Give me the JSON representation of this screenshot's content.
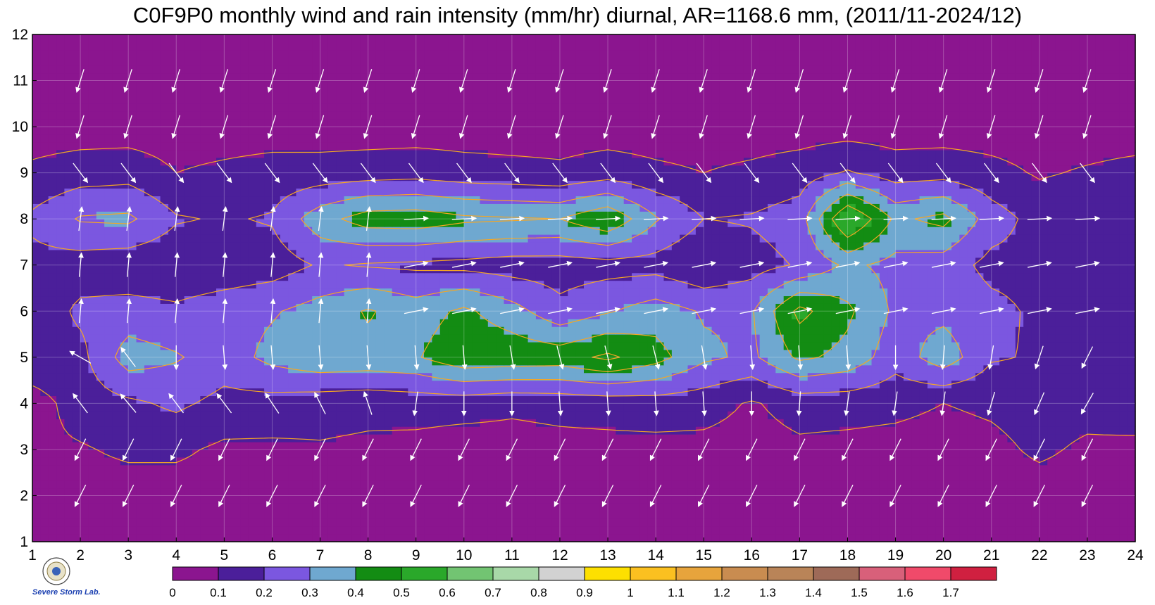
{
  "chart_data": {
    "type": "heatmap",
    "title": "C0F9P0 monthly wind and rain intensity (mm/hr) diurnal, AR=1168.6 mm, (2011/11-2024/12)",
    "xlabel": "",
    "ylabel": "",
    "x": [
      1,
      2,
      3,
      4,
      5,
      6,
      7,
      8,
      9,
      10,
      11,
      12,
      13,
      14,
      15,
      16,
      17,
      18,
      19,
      20,
      21,
      22,
      23,
      24
    ],
    "y": [
      1,
      2,
      3,
      4,
      5,
      6,
      7,
      8,
      9,
      10,
      11,
      12
    ],
    "xlim": [
      1,
      24
    ],
    "ylim": [
      1,
      12
    ],
    "x_tick_labels": [
      "1",
      "2",
      "3",
      "4",
      "5",
      "6",
      "7",
      "8",
      "9",
      "10",
      "11",
      "12",
      "13",
      "14",
      "15",
      "16",
      "17",
      "18",
      "19",
      "20",
      "21",
      "22",
      "23",
      "24"
    ],
    "y_tick_labels": [
      "1",
      "2",
      "3",
      "4",
      "5",
      "6",
      "7",
      "8",
      "9",
      "10",
      "11",
      "12"
    ],
    "grid": true,
    "z": [
      [
        0.05,
        0.05,
        0.05,
        0.05,
        0.05,
        0.05,
        0.05,
        0.05,
        0.05,
        0.05,
        0.05,
        0.05,
        0.05,
        0.05,
        0.05,
        0.05,
        0.05,
        0.05,
        0.05,
        0.05,
        0.05,
        0.05,
        0.05,
        0.05
      ],
      [
        0.05,
        0.05,
        0.05,
        0.05,
        0.05,
        0.05,
        0.05,
        0.05,
        0.05,
        0.05,
        0.05,
        0.05,
        0.05,
        0.05,
        0.05,
        0.05,
        0.05,
        0.05,
        0.05,
        0.05,
        0.05,
        0.05,
        0.05,
        0.05
      ],
      [
        0.08,
        0.09,
        0.12,
        0.12,
        0.08,
        0.08,
        0.09,
        0.08,
        0.07,
        0.05,
        0.06,
        0.07,
        0.07,
        0.07,
        0.07,
        0.06,
        0.08,
        0.07,
        0.06,
        0.05,
        0.07,
        0.12,
        0.08,
        0.07
      ],
      [
        0.05,
        0.15,
        0.18,
        0.22,
        0.17,
        0.16,
        0.14,
        0.13,
        0.14,
        0.14,
        0.12,
        0.13,
        0.14,
        0.15,
        0.14,
        0.09,
        0.14,
        0.14,
        0.13,
        0.1,
        0.12,
        0.15,
        0.14,
        0.17
      ],
      [
        0.18,
        0.17,
        0.35,
        0.31,
        0.25,
        0.33,
        0.38,
        0.37,
        0.39,
        0.48,
        0.47,
        0.46,
        0.52,
        0.44,
        0.32,
        0.28,
        0.42,
        0.37,
        0.24,
        0.36,
        0.21,
        0.19,
        0.18,
        0.19
      ],
      [
        0.13,
        0.22,
        0.24,
        0.22,
        0.26,
        0.29,
        0.34,
        0.41,
        0.35,
        0.42,
        0.34,
        0.23,
        0.29,
        0.35,
        0.29,
        0.29,
        0.53,
        0.42,
        0.28,
        0.27,
        0.23,
        0.18,
        0.17,
        0.18
      ],
      [
        0.17,
        0.15,
        0.13,
        0.12,
        0.13,
        0.15,
        0.21,
        0.19,
        0.18,
        0.17,
        0.15,
        0.15,
        0.16,
        0.16,
        0.11,
        0.16,
        0.21,
        0.32,
        0.27,
        0.25,
        0.17,
        0.17,
        0.15,
        0.18
      ],
      [
        0.22,
        0.31,
        0.32,
        0.21,
        0.19,
        0.21,
        0.36,
        0.45,
        0.46,
        0.42,
        0.41,
        0.4,
        0.49,
        0.31,
        0.2,
        0.21,
        0.25,
        0.62,
        0.38,
        0.43,
        0.25,
        0.16,
        0.17,
        0.14
      ],
      [
        0.12,
        0.15,
        0.16,
        0.1,
        0.12,
        0.14,
        0.14,
        0.15,
        0.16,
        0.14,
        0.13,
        0.12,
        0.15,
        0.12,
        0.1,
        0.12,
        0.15,
        0.21,
        0.15,
        0.16,
        0.13,
        0.09,
        0.11,
        0.13
      ],
      [
        0.05,
        0.05,
        0.05,
        0.05,
        0.05,
        0.05,
        0.05,
        0.05,
        0.05,
        0.05,
        0.05,
        0.05,
        0.05,
        0.05,
        0.05,
        0.05,
        0.05,
        0.05,
        0.05,
        0.05,
        0.05,
        0.05,
        0.05,
        0.05
      ],
      [
        0.05,
        0.05,
        0.05,
        0.05,
        0.05,
        0.05,
        0.05,
        0.05,
        0.05,
        0.05,
        0.05,
        0.05,
        0.05,
        0.05,
        0.05,
        0.05,
        0.05,
        0.05,
        0.05,
        0.05,
        0.05,
        0.05,
        0.05,
        0.05
      ],
      [
        0.05,
        0.05,
        0.05,
        0.05,
        0.05,
        0.05,
        0.05,
        0.05,
        0.05,
        0.05,
        0.05,
        0.05,
        0.05,
        0.05,
        0.05,
        0.05,
        0.05,
        0.05,
        0.05,
        0.05,
        0.05,
        0.05,
        0.05,
        0.05
      ]
    ],
    "wind_direction_deg": [
      35,
      35,
      35,
      35,
      35,
      35,
      35,
      35,
      35,
      35,
      35,
      35,
      0,
      0,
      0,
      0,
      0,
      0,
      0,
      0,
      0,
      0,
      0,
      0,
      0,
      0,
      0,
      0,
      0,
      0,
      0,
      0,
      0,
      0,
      0,
      0,
      0,
      0,
      0,
      0,
      0,
      0,
      0,
      0,
      0,
      0,
      0,
      0,
      0,
      0,
      0,
      0,
      0,
      0,
      0,
      0,
      0,
      0,
      0,
      0,
      0,
      0,
      0,
      0,
      0,
      0,
      0,
      0,
      0,
      0,
      0,
      0,
      0,
      0,
      0,
      0,
      0,
      0,
      0,
      0,
      0,
      0,
      0,
      0,
      0,
      0,
      0,
      0,
      0,
      0,
      0,
      0,
      0,
      0,
      0,
      0,
      0,
      0,
      0,
      0,
      0,
      0,
      0,
      0,
      0,
      0,
      0,
      0,
      0,
      0,
      0,
      0,
      0,
      0,
      0,
      0,
      0,
      0,
      0,
      0,
      0,
      0,
      0,
      0,
      0,
      0,
      0,
      0,
      0,
      0,
      0,
      0,
      0,
      0,
      0,
      0,
      0,
      0,
      0,
      0,
      0,
      0,
      0,
      0,
      0,
      0,
      0,
      0,
      0,
      0,
      0,
      0,
      0,
      0,
      0,
      0,
      0,
      0,
      0,
      0,
      0,
      0,
      0,
      0,
      0,
      0,
      0,
      0,
      0,
      0,
      0,
      0,
      0,
      0,
      0,
      0,
      0,
      0,
      0,
      0,
      0,
      0,
      0,
      0,
      0,
      0,
      0,
      0,
      0,
      0,
      0,
      0,
      0,
      0,
      0,
      0,
      0,
      0,
      0,
      0,
      0,
      0,
      0,
      0,
      0,
      0,
      0,
      0,
      0,
      0,
      0,
      0,
      0,
      0,
      0,
      0,
      0,
      0,
      0,
      0,
      0,
      0,
      0,
      0,
      0,
      0,
      0,
      0,
      0,
      0,
      0,
      0,
      0,
      0,
      0,
      0,
      0,
      0,
      0,
      0,
      0,
      0,
      0,
      0,
      0,
      0,
      0,
      0,
      0,
      0,
      0,
      0,
      0,
      0,
      0,
      0,
      0,
      0,
      0,
      0,
      0,
      0,
      0,
      0,
      0,
      0,
      0,
      0,
      0,
      0,
      0,
      0,
      0,
      0,
      0,
      0,
      0,
      0,
      0,
      0,
      0,
      0,
      0,
      0,
      0,
      0,
      0,
      0,
      0,
      0,
      0,
      0
    ],
    "wind_u": [
      [
        -1,
        -1,
        -1,
        -1,
        -1,
        -1,
        -1,
        -1,
        -1,
        -1,
        -1,
        -1,
        -1,
        -1,
        -1,
        -1,
        -1,
        -1,
        -1,
        -1,
        -1,
        -1,
        -1,
        -1
      ],
      [
        -0.7,
        -0.6,
        -0.6,
        -0.6,
        -0.55,
        -0.5,
        -0.45,
        -0.4,
        -0.35,
        -0.3,
        -0.3,
        -0.3,
        -0.3,
        -0.3,
        -0.3,
        -0.3,
        -0.35,
        -0.35,
        -0.4,
        -0.45,
        -0.5,
        -0.5,
        -0.6,
        -0.7
      ],
      [
        -0.5,
        -0.4,
        -0.35,
        -0.3,
        -0.25,
        -0.2,
        -0.2,
        -0.2,
        -0.15,
        -0.1,
        -0.15,
        -0.15,
        -0.15,
        -0.15,
        -0.15,
        -0.1,
        -0.15,
        -0.15,
        -0.2,
        -0.25,
        -0.3,
        -0.3,
        -0.35,
        -0.4
      ],
      [
        -0.35,
        -0.45,
        -0.5,
        -0.45,
        -0.45,
        -0.4,
        -0.3,
        -0.2,
        -0.1,
        0.0,
        0.0,
        0.05,
        0.05,
        0.05,
        0.05,
        0.0,
        -0.05,
        -0.1,
        -0.1,
        -0.1,
        -0.2,
        -0.3,
        -0.4,
        -0.45
      ],
      [
        -0.6,
        -0.35,
        -0.15,
        0.0,
        0.05,
        0.05,
        0.05,
        0.05,
        0.05,
        0.05,
        0.1,
        0.15,
        0.15,
        0.15,
        0.1,
        0.05,
        0.05,
        0.05,
        0.0,
        -0.05,
        -0.1,
        -0.2,
        -0.3,
        -0.4
      ],
      [
        0.0,
        0.0,
        0.0,
        0.0,
        0.0,
        0.0,
        0.1,
        0.25,
        0.35,
        0.45,
        0.5,
        0.55,
        0.55,
        0.5,
        0.45,
        0.4,
        0.35,
        0.1,
        0.05,
        0.0,
        0.0,
        0.0,
        0.0,
        0.0
      ],
      [
        0.0,
        0.0,
        0.0,
        0.0,
        0.0,
        0.0,
        0.05,
        0.1,
        0.2,
        0.35,
        0.45,
        0.55,
        0.6,
        0.65,
        0.6,
        0.55,
        0.3,
        0.1,
        0.0,
        0.0,
        0.0,
        0.0,
        0.0,
        0.0
      ],
      [
        0.0,
        0.05,
        0.05,
        0.05,
        0.0,
        0.05,
        0.1,
        0.15,
        0.2,
        0.3,
        0.35,
        0.4,
        0.45,
        0.45,
        0.45,
        0.4,
        0.35,
        0.2,
        0.1,
        0.05,
        0.05,
        0.0,
        0.0,
        0.0
      ],
      [
        0.0,
        0.2,
        0.2,
        0.1,
        0.0,
        0.1,
        0.2,
        0.2,
        0.15,
        0.1,
        0.05,
        0.05,
        0.05,
        0.05,
        0.05,
        0.05,
        0.05,
        0.05,
        0.05,
        0.05,
        0.05,
        0.05,
        0.0,
        0.0
      ],
      [
        0.0,
        0.0,
        0.0,
        0.0,
        0.0,
        0.0,
        0.0,
        0.0,
        0.0,
        0.0,
        0.0,
        0.0,
        0.0,
        0.0,
        0.0,
        0.0,
        0.0,
        0.0,
        0.0,
        0.0,
        0.0,
        0.0,
        0.0,
        0.0
      ],
      [
        0.0,
        0.0,
        0.0,
        0.0,
        0.0,
        0.0,
        0.0,
        0.0,
        0.0,
        0.0,
        0.0,
        0.0,
        0.0,
        0.0,
        0.0,
        0.0,
        0.0,
        0.0,
        0.0,
        0.0,
        0.0,
        0.0,
        0.0,
        0.0
      ],
      [
        0.0,
        0.0,
        0.0,
        0.0,
        0.0,
        0.0,
        0.0,
        0.0,
        0.0,
        0.0,
        0.0,
        0.0,
        0.0,
        0.0,
        0.0,
        0.0,
        0.0,
        0.0,
        0.0,
        0.0,
        0.0,
        0.0,
        0.0,
        0.0
      ]
    ],
    "colorbar": {
      "levels": [
        0,
        0.1,
        0.2,
        0.3,
        0.4,
        0.5,
        0.6,
        0.7,
        0.8,
        0.9,
        1,
        1.1,
        1.2,
        1.3,
        1.4,
        1.5,
        1.6,
        1.7
      ],
      "labels": [
        "0",
        "0.1",
        "0.2",
        "0.3",
        "0.4",
        "0.5",
        "0.6",
        "0.7",
        "0.8",
        "0.9",
        "1",
        "1.1",
        "1.2",
        "1.3",
        "1.4",
        "1.5",
        "1.6",
        "1.7"
      ],
      "colors": [
        "#8b158f",
        "#4b1f9a",
        "#7b57e0",
        "#6fa8d0",
        "#138c13",
        "#2aa82a",
        "#72c472",
        "#a8d8a8",
        "#d2d2d2",
        "#fde000",
        "#fbc020",
        "#e7a43c",
        "#c98c50",
        "#b98458",
        "#9e6a58",
        "#d8607a",
        "#f04a6a",
        "#d02040"
      ]
    },
    "contour_line_color": "#f5a623"
  },
  "logo": {
    "text": "Severe Storm Lab."
  }
}
